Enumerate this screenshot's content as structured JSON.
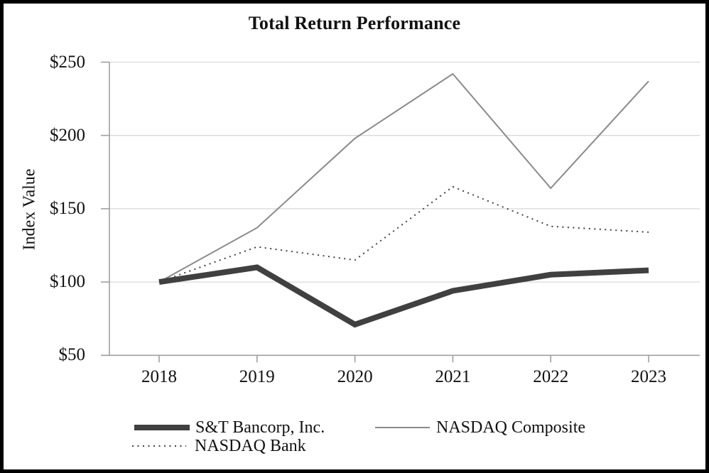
{
  "chart_data": {
    "type": "line",
    "title": "Total Return Performance",
    "xlabel": "",
    "ylabel": "Index Value",
    "categories": [
      "2018",
      "2019",
      "2020",
      "2021",
      "2022",
      "2023"
    ],
    "series": [
      {
        "name": "S&T Bancorp, Inc.",
        "values": [
          100,
          110,
          71,
          94,
          105,
          108
        ],
        "line_style": "thick-solid",
        "color": "#404040"
      },
      {
        "name": "NASDAQ Composite",
        "values": [
          100,
          137,
          198,
          242,
          164,
          237
        ],
        "line_style": "thin-solid",
        "color": "#8a8a8a"
      },
      {
        "name": "NASDAQ Bank",
        "values": [
          100,
          124,
          115,
          165,
          138,
          134
        ],
        "line_style": "dotted",
        "color": "#404040"
      }
    ],
    "y_ticks": [
      {
        "value": 50,
        "label": "$50"
      },
      {
        "value": 100,
        "label": "$100"
      },
      {
        "value": 150,
        "label": "$150"
      },
      {
        "value": 200,
        "label": "$200"
      },
      {
        "value": 250,
        "label": "$250"
      }
    ],
    "ylim": [
      50,
      250
    ],
    "grid": "horizontal",
    "legend_position": "bottom-left",
    "colors": {
      "gridline": "#d9d9d9",
      "axis": "#a0a0a0",
      "text": "#111111"
    }
  }
}
